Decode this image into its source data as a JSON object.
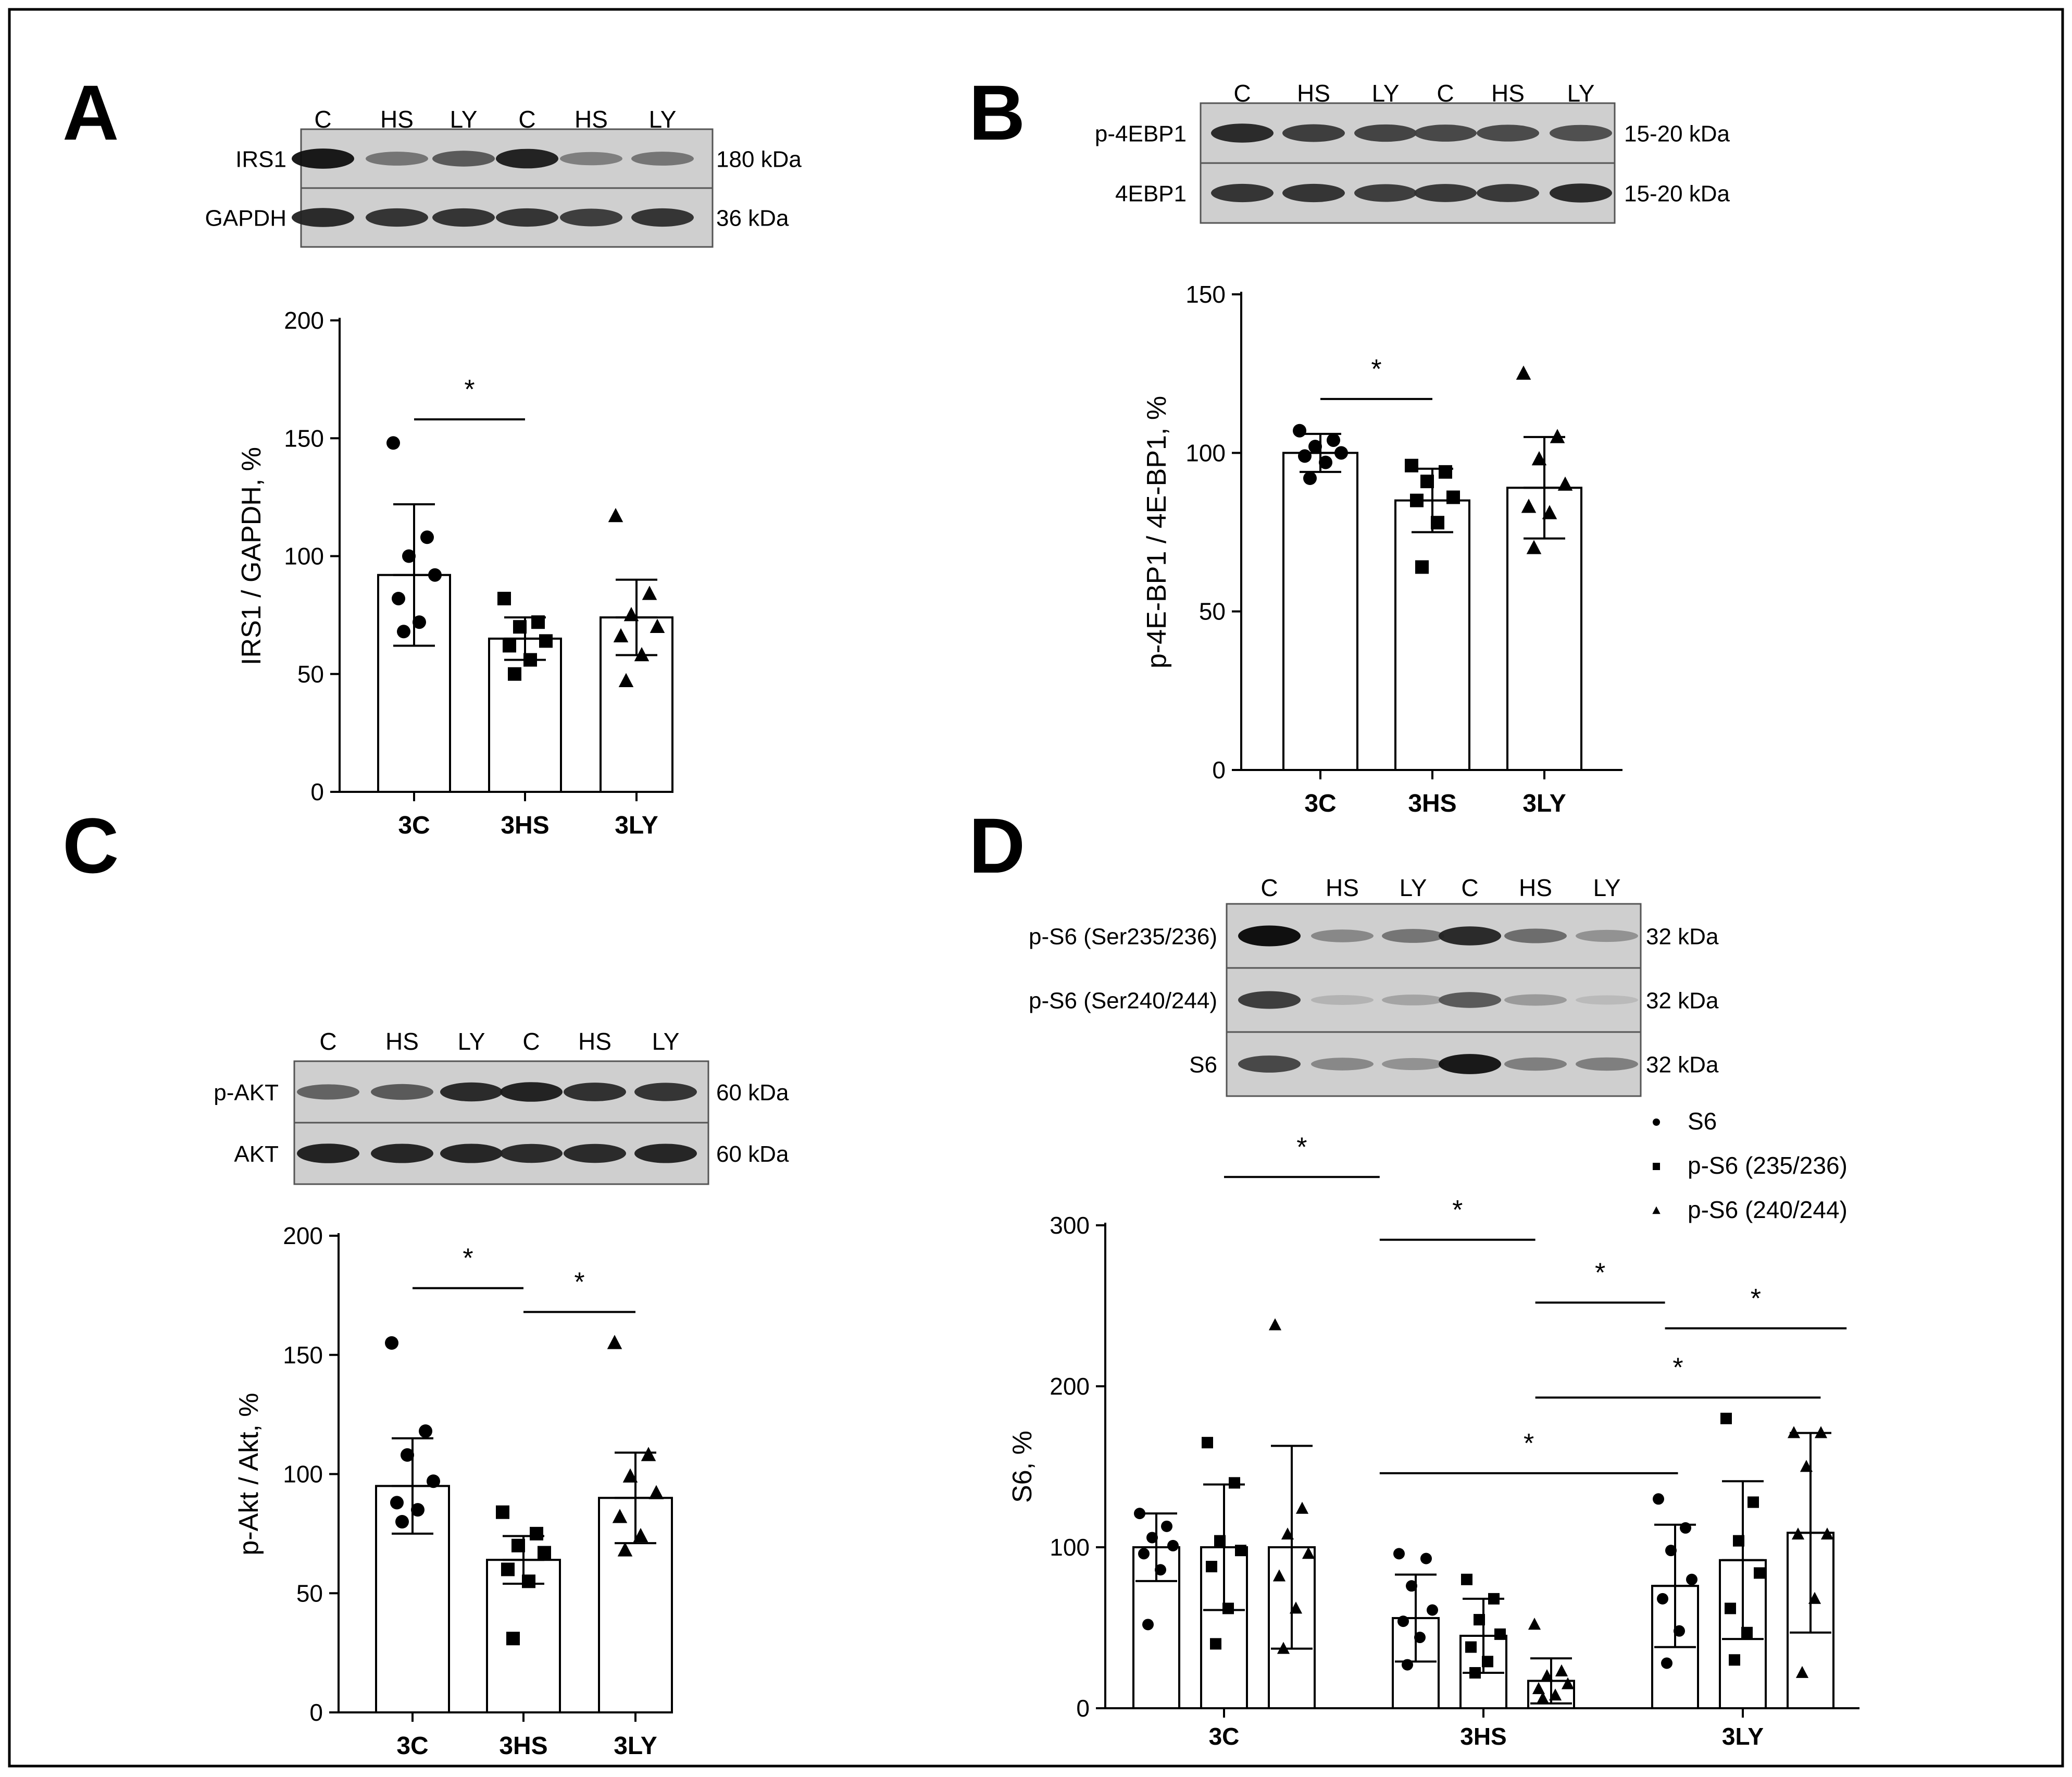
{
  "panels": {
    "A": {
      "letter": "A",
      "blot": {
        "lanes": [
          "C",
          "HS",
          "LY",
          "C",
          "HS",
          "LY"
        ],
        "rows": [
          {
            "protein": "IRS1",
            "size": "180 kDa"
          },
          {
            "protein": "GAPDH",
            "size": "36 kDa"
          }
        ]
      }
    },
    "B": {
      "letter": "B",
      "blot": {
        "lanes": [
          "C",
          "HS",
          "LY",
          "C",
          "HS",
          "LY"
        ],
        "rows": [
          {
            "protein": "p-4EBP1",
            "size": "15-20 kDa"
          },
          {
            "protein": "4EBP1",
            "size": "15-20 kDa"
          }
        ]
      }
    },
    "C": {
      "letter": "C",
      "blot": {
        "lanes": [
          "C",
          "HS",
          "LY",
          "C",
          "HS",
          "LY"
        ],
        "rows": [
          {
            "protein": "p-AKT",
            "size": "60 kDa"
          },
          {
            "protein": "AKT",
            "size": "60 kDa"
          }
        ]
      }
    },
    "D": {
      "letter": "D",
      "blot": {
        "lanes": [
          "C",
          "HS",
          "LY",
          "C",
          "HS",
          "LY"
        ],
        "rows": [
          {
            "protein": "p-S6 (Ser235/236)",
            "size": "32 kDa"
          },
          {
            "protein": "p-S6 (Ser240/244)",
            "size": "32 kDa"
          },
          {
            "protein": "S6",
            "size": "32 kDa"
          }
        ]
      }
    }
  },
  "chart_data": [
    {
      "panel": "A",
      "type": "bar",
      "categories": [
        "3C",
        "3HS",
        "3LY"
      ],
      "values": [
        92,
        65,
        74
      ],
      "sd": [
        30,
        9,
        16
      ],
      "points": [
        [
          148,
          108,
          100,
          92,
          82,
          72,
          68
        ],
        [
          82,
          72,
          70,
          64,
          62,
          56,
          50
        ],
        [
          117,
          84,
          75,
          70,
          66,
          58,
          47
        ]
      ],
      "ylabel": "IRS1 / GAPDH, %",
      "ylim": [
        0,
        200
      ],
      "yticks": [
        0,
        50,
        100,
        150,
        200
      ],
      "significance": [
        {
          "from": 0,
          "to": 1,
          "label": "*",
          "level": 158
        }
      ]
    },
    {
      "panel": "B",
      "type": "bar",
      "categories": [
        "3C",
        "3HS",
        "3LY"
      ],
      "values": [
        100,
        85,
        89
      ],
      "sd": [
        6,
        10,
        16
      ],
      "points": [
        [
          107,
          104,
          102,
          100,
          99,
          97,
          92
        ],
        [
          96,
          94,
          91,
          86,
          85,
          78,
          64
        ],
        [
          125,
          105,
          98,
          90,
          83,
          81,
          70
        ]
      ],
      "ylabel": "p-4E-BP1 / 4E-BP1, %",
      "ylim": [
        0,
        150
      ],
      "yticks": [
        0,
        50,
        100,
        150
      ],
      "significance": [
        {
          "from": 0,
          "to": 1,
          "label": "*",
          "level": 117
        }
      ]
    },
    {
      "panel": "C",
      "type": "bar",
      "categories": [
        "3C",
        "3HS",
        "3LY"
      ],
      "values": [
        95,
        64,
        90
      ],
      "sd": [
        20,
        10,
        19
      ],
      "points": [
        [
          155,
          118,
          108,
          97,
          88,
          85,
          80
        ],
        [
          84,
          75,
          70,
          67,
          60,
          55,
          31
        ],
        [
          155,
          108,
          99,
          92,
          82,
          74,
          68
        ]
      ],
      "ylabel": "p-Akt / Akt, %",
      "ylim": [
        0,
        200
      ],
      "yticks": [
        0,
        50,
        100,
        150,
        200
      ],
      "significance": [
        {
          "from": 0,
          "to": 1,
          "label": "*",
          "level": 178
        },
        {
          "from": 1,
          "to": 2,
          "label": "*",
          "level": 168
        }
      ]
    },
    {
      "panel": "D",
      "type": "bar",
      "categories": [
        "3C",
        "3HS",
        "3LY"
      ],
      "series": [
        {
          "name": "S6",
          "marker": "circle",
          "values": [
            100,
            56,
            76
          ],
          "sd": [
            21,
            27,
            38
          ],
          "points": [
            [
              121,
              113,
              106,
              101,
              96,
              86,
              52
            ],
            [
              96,
              93,
              76,
              61,
              54,
              44,
              27
            ],
            [
              130,
              112,
              98,
              80,
              68,
              48,
              28
            ]
          ]
        },
        {
          "name": "p-S6 (235/236)",
          "marker": "square",
          "values": [
            100,
            45,
            92
          ],
          "sd": [
            39,
            23,
            49
          ],
          "points": [
            [
              165,
              140,
              104,
              98,
              88,
              62,
              40
            ],
            [
              80,
              68,
              55,
              46,
              38,
              29,
              22
            ],
            [
              180,
              128,
              104,
              84,
              62,
              47,
              30
            ]
          ]
        },
        {
          "name": "p-S6 (240/244)",
          "marker": "triangle",
          "values": [
            100,
            17,
            109
          ],
          "sd": [
            63,
            14,
            62
          ],
          "points": [
            [
              238,
              124,
              108,
              96,
              82,
              62,
              37
            ],
            [
              52,
              23,
              20,
              15,
              12,
              8,
              6
            ],
            [
              171,
              171,
              150,
              108,
              108,
              68,
              22
            ]
          ]
        }
      ],
      "legend": [
        "S6",
        "p-S6 (235/236)",
        "p-S6 (240/244)"
      ],
      "ylabel": "S6, %",
      "ylim": [
        0,
        300
      ],
      "yticks": [
        0,
        100,
        200,
        300
      ],
      "significance": [
        {
          "x1": 1.0,
          "x2": 1.6,
          "label": "*",
          "level": 330
        },
        {
          "x1": 1.6,
          "x2": 2.2,
          "label": "*",
          "level": 291
        },
        {
          "x1": 2.2,
          "x2": 2.7,
          "label": "*",
          "level": 252
        },
        {
          "x1": 2.7,
          "x2": 3.4,
          "label": "*",
          "level": 236
        },
        {
          "x1": 2.2,
          "x2": 3.3,
          "label": "*",
          "level": 193
        },
        {
          "x1": 1.6,
          "x2": 2.75,
          "label": "*",
          "level": 146
        }
      ]
    }
  ]
}
